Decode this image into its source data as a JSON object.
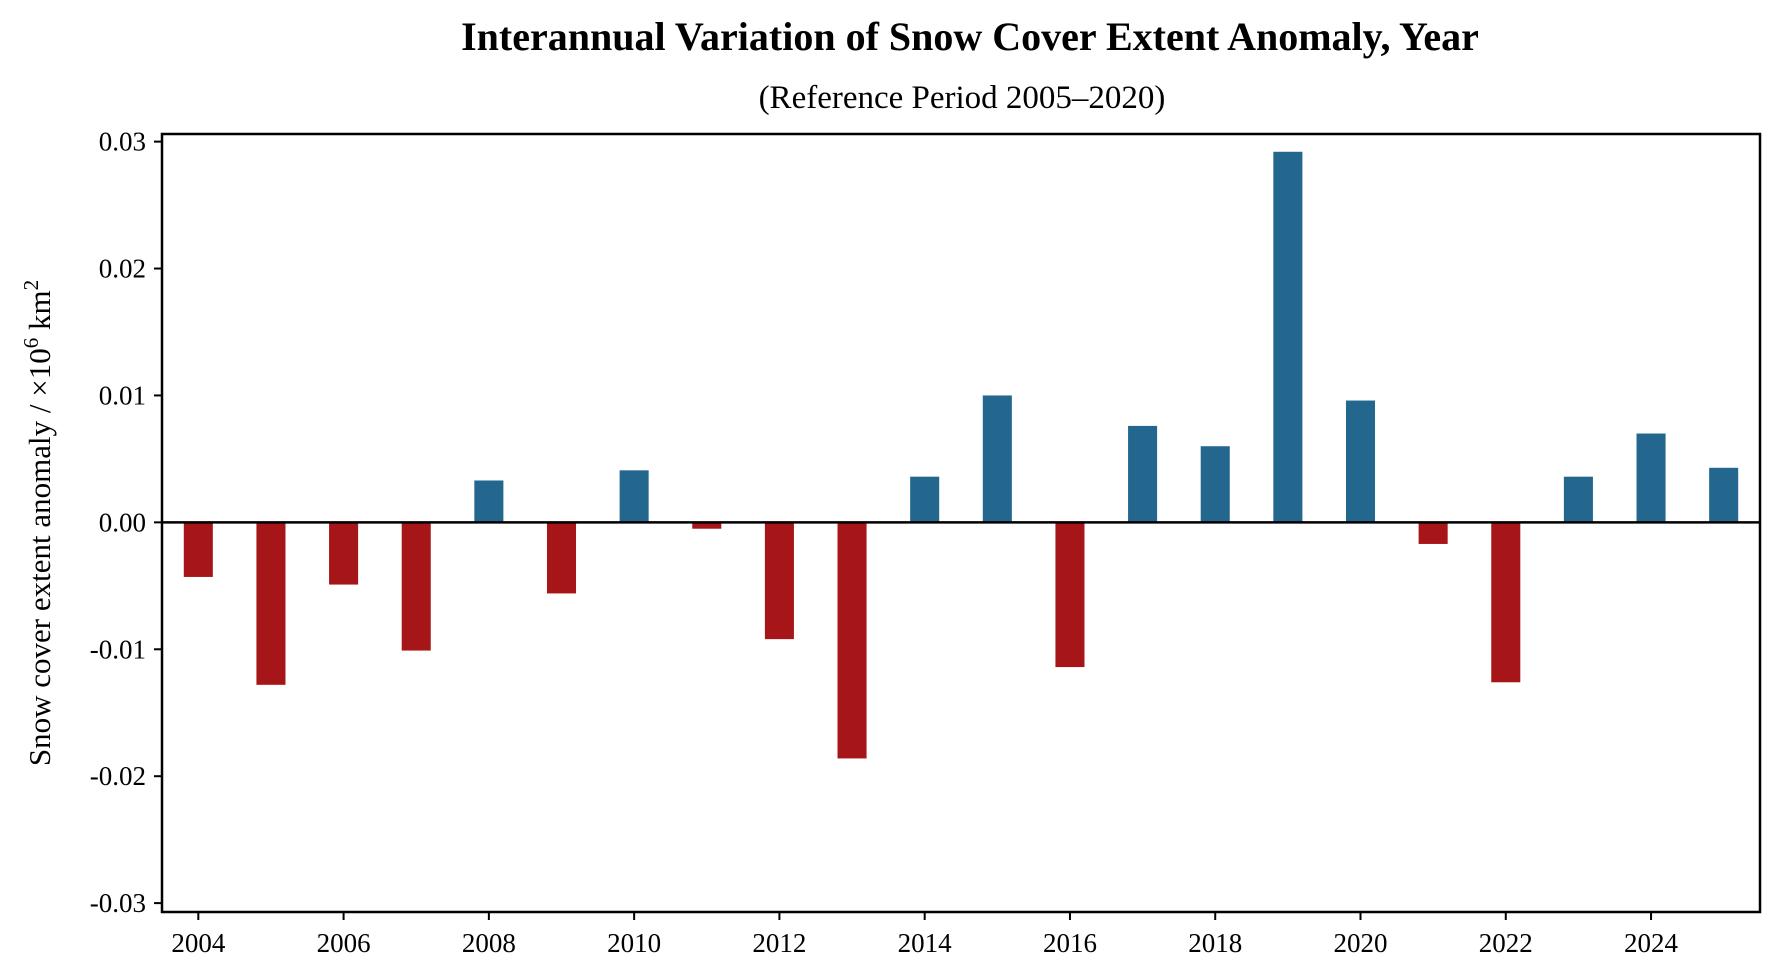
{
  "chart_data": {
    "type": "bar",
    "title": "Interannual Variation of Snow Cover Extent Anomaly, Year",
    "subtitle": "(Reference Period 2005–2020)",
    "xlabel": "",
    "ylabel": "Snow cover extent anomaly / ×10",
    "ylabel_exponent": "6",
    "ylabel_unit": " km",
    "ylabel_unit_exponent": "2",
    "categories": [
      2004,
      2005,
      2006,
      2007,
      2008,
      2009,
      2010,
      2011,
      2012,
      2013,
      2014,
      2015,
      2016,
      2017,
      2018,
      2019,
      2020,
      2021,
      2022,
      2023,
      2024,
      2025
    ],
    "values": [
      -0.0043,
      -0.0128,
      -0.0049,
      -0.0101,
      0.0033,
      -0.0056,
      0.0041,
      -0.0005,
      -0.0092,
      -0.0186,
      0.0036,
      0.01,
      -0.0114,
      0.0076,
      0.006,
      0.0292,
      0.0096,
      -0.0017,
      -0.0126,
      0.0036,
      0.007,
      0.0043
    ],
    "xlim": [
      2003.5,
      2025.5
    ],
    "ylim": [
      -0.0307,
      0.0306
    ],
    "xticks": [
      2004,
      2006,
      2008,
      2010,
      2012,
      2014,
      2016,
      2018,
      2020,
      2022,
      2024
    ],
    "xtick_labels": [
      "2004",
      "2006",
      "2008",
      "2010",
      "2012",
      "2014",
      "2016",
      "2018",
      "2020",
      "2022",
      "2024"
    ],
    "yticks": [
      0.03,
      0.02,
      0.01,
      0.0,
      -0.01,
      -0.02,
      -0.03
    ],
    "ytick_labels": [
      "0.03",
      "0.02",
      "0.01",
      "0.00",
      "-0.01",
      "-0.02",
      "-0.03"
    ],
    "bar_width_years": 0.4,
    "grid": false,
    "legend": "none",
    "zero_line": true,
    "colors": {
      "positive": "#23678f",
      "negative": "#a61517",
      "axis": "#000000"
    }
  }
}
